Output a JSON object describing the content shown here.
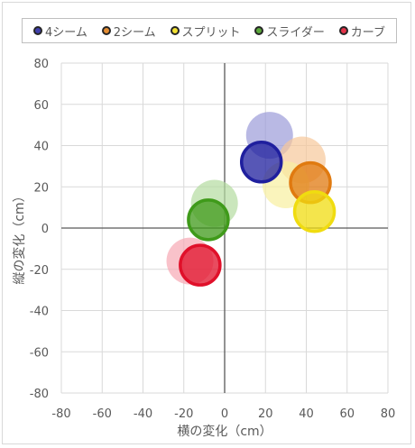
{
  "chart_data": {
    "type": "scatter",
    "title": "",
    "xlabel": "横の変化（cm）",
    "ylabel": "縦の変化（cm）",
    "xlim": [
      -80,
      80
    ],
    "ylim": [
      -80,
      80
    ],
    "x_ticks": [
      -80,
      -60,
      -40,
      -20,
      0,
      20,
      40,
      60,
      80
    ],
    "y_ticks": [
      -80,
      -60,
      -40,
      -20,
      0,
      20,
      40,
      60,
      80
    ],
    "grid": true,
    "legend_position": "top",
    "series": [
      {
        "name": "4シーム",
        "color": "#1f1f9e",
        "fill_light": "#9b9bd9",
        "points": [
          {
            "x": 22,
            "y": 45,
            "faded": true
          },
          {
            "x": 18,
            "y": 32,
            "faded": false
          }
        ]
      },
      {
        "name": "2シーム",
        "color": "#e07a10",
        "fill_light": "#f7c79a",
        "points": [
          {
            "x": 38,
            "y": 33,
            "faded": true
          },
          {
            "x": 42,
            "y": 22,
            "faded": false
          }
        ]
      },
      {
        "name": "スプリット",
        "color": "#f0dc10",
        "fill_light": "#f8f0a0",
        "points": [
          {
            "x": 30,
            "y": 21,
            "faded": true
          },
          {
            "x": 44,
            "y": 8,
            "faded": false
          }
        ]
      },
      {
        "name": "スライダー",
        "color": "#3f9a1a",
        "fill_light": "#b4dca0",
        "points": [
          {
            "x": -5,
            "y": 12,
            "faded": true
          },
          {
            "x": -8,
            "y": 4,
            "faded": false
          }
        ]
      },
      {
        "name": "カーブ",
        "color": "#e0102a",
        "fill_light": "#f7a8b4",
        "points": [
          {
            "x": -17,
            "y": -16,
            "faded": true
          },
          {
            "x": -12,
            "y": -18,
            "faded": false
          }
        ]
      }
    ]
  }
}
